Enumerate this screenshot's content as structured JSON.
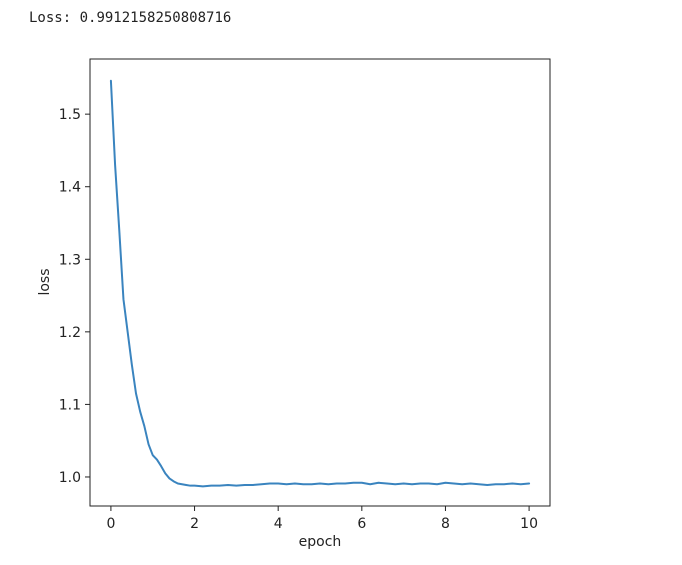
{
  "output": {
    "label": "Loss:",
    "value": "0.9912158250808716"
  },
  "chart_data": {
    "type": "line",
    "title": "",
    "xlabel": "epoch",
    "ylabel": "loss",
    "xlim": [
      -0.5,
      10.5
    ],
    "ylim": [
      0.96,
      1.576
    ],
    "xticks": [
      0,
      2,
      4,
      6,
      8,
      10
    ],
    "yticks": [
      1.0,
      1.1,
      1.2,
      1.3,
      1.4,
      1.5
    ],
    "xtick_labels": [
      "0",
      "2",
      "4",
      "6",
      "8",
      "10"
    ],
    "ytick_labels": [
      "1.0",
      "1.1",
      "1.2",
      "1.3",
      "1.4",
      "1.5"
    ],
    "grid": false,
    "legend": null,
    "line_color": "#3a84bf",
    "series": [
      {
        "x": [
          0,
          0.1,
          0.2,
          0.3,
          0.4,
          0.5,
          0.6,
          0.7,
          0.8,
          0.9,
          1.0,
          1.1,
          1.2,
          1.3,
          1.4,
          1.5,
          1.6,
          1.7,
          1.8,
          1.9,
          2.0,
          2.2,
          2.4,
          2.6,
          2.8,
          3.0,
          3.2,
          3.4,
          3.6,
          3.8,
          4.0,
          4.2,
          4.4,
          4.6,
          4.8,
          5.0,
          5.2,
          5.4,
          5.6,
          5.8,
          6.0,
          6.2,
          6.4,
          6.6,
          6.8,
          7.0,
          7.2,
          7.4,
          7.6,
          7.8,
          8.0,
          8.2,
          8.4,
          8.6,
          8.8,
          9.0,
          9.2,
          9.4,
          9.6,
          9.8,
          10.0
        ],
        "values": [
          1.546,
          1.43,
          1.34,
          1.245,
          1.2,
          1.155,
          1.115,
          1.09,
          1.07,
          1.045,
          1.03,
          1.024,
          1.015,
          1.005,
          0.998,
          0.994,
          0.991,
          0.99,
          0.989,
          0.988,
          0.988,
          0.987,
          0.988,
          0.988,
          0.989,
          0.988,
          0.989,
          0.989,
          0.99,
          0.991,
          0.991,
          0.99,
          0.991,
          0.99,
          0.99,
          0.991,
          0.99,
          0.991,
          0.991,
          0.992,
          0.992,
          0.99,
          0.992,
          0.991,
          0.99,
          0.991,
          0.99,
          0.991,
          0.991,
          0.99,
          0.992,
          0.991,
          0.99,
          0.991,
          0.99,
          0.989,
          0.99,
          0.99,
          0.991,
          0.99,
          0.991
        ]
      }
    ]
  }
}
